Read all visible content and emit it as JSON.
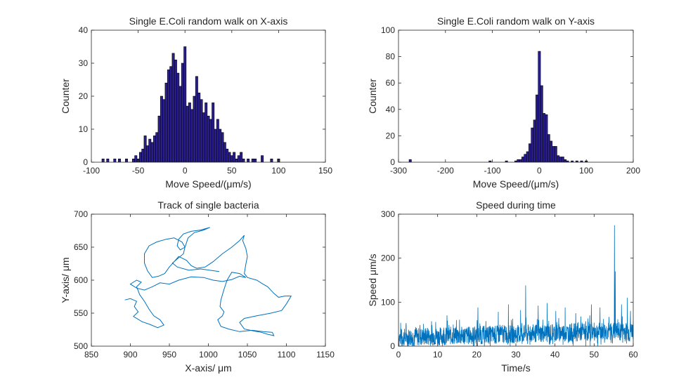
{
  "chart_data": [
    {
      "type": "bar",
      "title": "Single E.Coli random walk on X-axis",
      "xlabel": "Move Speed/(μm/s)",
      "ylabel": "Counter",
      "xlim": [
        -100,
        150
      ],
      "ylim": [
        0,
        40
      ],
      "xticks": [
        -100,
        -50,
        0,
        50,
        100,
        150
      ],
      "yticks": [
        0,
        10,
        20,
        30,
        40
      ],
      "bin_width": 2.5,
      "bars": [
        {
          "x": -87.5,
          "y": 1
        },
        {
          "x": -82.5,
          "y": 1
        },
        {
          "x": -75,
          "y": 1
        },
        {
          "x": -70,
          "y": 1
        },
        {
          "x": -62.5,
          "y": 1
        },
        {
          "x": -55,
          "y": 1
        },
        {
          "x": -52.5,
          "y": 2
        },
        {
          "x": -50,
          "y": 1
        },
        {
          "x": -47.5,
          "y": 3
        },
        {
          "x": -45,
          "y": 4
        },
        {
          "x": -42.5,
          "y": 8
        },
        {
          "x": -40,
          "y": 5
        },
        {
          "x": -37.5,
          "y": 7
        },
        {
          "x": -35,
          "y": 6
        },
        {
          "x": -32.5,
          "y": 8
        },
        {
          "x": -30,
          "y": 9
        },
        {
          "x": -27.5,
          "y": 14
        },
        {
          "x": -25,
          "y": 20
        },
        {
          "x": -22.5,
          "y": 19
        },
        {
          "x": -20,
          "y": 24
        },
        {
          "x": -17.5,
          "y": 28
        },
        {
          "x": -15,
          "y": 29
        },
        {
          "x": -12.5,
          "y": 33
        },
        {
          "x": -10,
          "y": 31
        },
        {
          "x": -7.5,
          "y": 27
        },
        {
          "x": -5,
          "y": 23
        },
        {
          "x": -2.5,
          "y": 30
        },
        {
          "x": 0,
          "y": 35
        },
        {
          "x": 2.5,
          "y": 17
        },
        {
          "x": 5,
          "y": 18
        },
        {
          "x": 7.5,
          "y": 16
        },
        {
          "x": 10,
          "y": 20
        },
        {
          "x": 12.5,
          "y": 26
        },
        {
          "x": 15,
          "y": 21
        },
        {
          "x": 17.5,
          "y": 19
        },
        {
          "x": 20,
          "y": 15
        },
        {
          "x": 22.5,
          "y": 18
        },
        {
          "x": 25,
          "y": 14
        },
        {
          "x": 27.5,
          "y": 13
        },
        {
          "x": 30,
          "y": 18
        },
        {
          "x": 32.5,
          "y": 10
        },
        {
          "x": 35,
          "y": 13
        },
        {
          "x": 37.5,
          "y": 10
        },
        {
          "x": 40,
          "y": 9
        },
        {
          "x": 42.5,
          "y": 6
        },
        {
          "x": 45,
          "y": 4
        },
        {
          "x": 47.5,
          "y": 3
        },
        {
          "x": 50,
          "y": 2
        },
        {
          "x": 52.5,
          "y": 3
        },
        {
          "x": 55,
          "y": 1
        },
        {
          "x": 57.5,
          "y": 2
        },
        {
          "x": 60,
          "y": 3
        },
        {
          "x": 62.5,
          "y": 1
        },
        {
          "x": 67.5,
          "y": 1
        },
        {
          "x": 72.5,
          "y": 1
        },
        {
          "x": 75,
          "y": 1
        },
        {
          "x": 82.5,
          "y": 2
        },
        {
          "x": 92.5,
          "y": 1
        },
        {
          "x": 100,
          "y": 1
        }
      ]
    },
    {
      "type": "bar",
      "title": "Single E.Coli random walk on Y-axis",
      "xlabel": "Move Speed/(μm/s)",
      "ylabel": "Counter",
      "xlim": [
        -300,
        200
      ],
      "ylim": [
        0,
        100
      ],
      "xticks": [
        -300,
        -200,
        -100,
        0,
        100,
        200
      ],
      "yticks": [
        0,
        20,
        40,
        60,
        80,
        100
      ],
      "bin_width": 5,
      "bars": [
        {
          "x": -275,
          "y": 2
        },
        {
          "x": -105,
          "y": 1
        },
        {
          "x": -70,
          "y": 1
        },
        {
          "x": -50,
          "y": 1
        },
        {
          "x": -45,
          "y": 2
        },
        {
          "x": -40,
          "y": 2
        },
        {
          "x": -35,
          "y": 4
        },
        {
          "x": -30,
          "y": 6
        },
        {
          "x": -25,
          "y": 8
        },
        {
          "x": -20,
          "y": 14
        },
        {
          "x": -15,
          "y": 26
        },
        {
          "x": -10,
          "y": 32
        },
        {
          "x": -5,
          "y": 51
        },
        {
          "x": 0,
          "y": 84
        },
        {
          "x": 5,
          "y": 58
        },
        {
          "x": 10,
          "y": 37
        },
        {
          "x": 15,
          "y": 36
        },
        {
          "x": 20,
          "y": 21
        },
        {
          "x": 25,
          "y": 16
        },
        {
          "x": 30,
          "y": 12
        },
        {
          "x": 35,
          "y": 12
        },
        {
          "x": 40,
          "y": 5
        },
        {
          "x": 45,
          "y": 4
        },
        {
          "x": 50,
          "y": 4
        },
        {
          "x": 55,
          "y": 2
        },
        {
          "x": 60,
          "y": 1
        },
        {
          "x": 70,
          "y": 1
        },
        {
          "x": 80,
          "y": 1
        },
        {
          "x": 90,
          "y": 1
        },
        {
          "x": 100,
          "y": 1
        }
      ]
    },
    {
      "type": "line",
      "title": "Track of single bacteria",
      "xlabel": "X-axis/ μm",
      "ylabel": "Y-axis/ μm",
      "xlim": [
        850,
        1150
      ],
      "ylim": [
        500,
        700
      ],
      "xticks": [
        850,
        900,
        950,
        1000,
        1050,
        1100,
        1150
      ],
      "yticks": [
        500,
        550,
        600,
        650,
        700
      ],
      "path": [
        [
          893,
          570
        ],
        [
          900,
          572
        ],
        [
          908,
          568
        ],
        [
          905,
          560
        ],
        [
          910,
          552
        ],
        [
          904,
          545
        ],
        [
          915,
          537
        ],
        [
          925,
          533
        ],
        [
          935,
          528
        ],
        [
          943,
          532
        ],
        [
          938,
          540
        ],
        [
          930,
          546
        ],
        [
          924,
          556
        ],
        [
          918,
          568
        ],
        [
          912,
          578
        ],
        [
          908,
          590
        ],
        [
          914,
          597
        ],
        [
          908,
          600
        ],
        [
          900,
          594
        ],
        [
          908,
          588
        ],
        [
          918,
          585
        ],
        [
          928,
          590
        ],
        [
          938,
          596
        ],
        [
          950,
          594
        ],
        [
          962,
          600
        ],
        [
          978,
          605
        ],
        [
          994,
          604
        ],
        [
          1006,
          600
        ],
        [
          1018,
          598
        ],
        [
          1030,
          601
        ],
        [
          1040,
          606
        ],
        [
          1048,
          604
        ],
        [
          1040,
          610
        ],
        [
          1030,
          612
        ],
        [
          1024,
          600
        ],
        [
          1020,
          586
        ],
        [
          1016,
          570
        ],
        [
          1015,
          560
        ],
        [
          1020,
          552
        ],
        [
          1018,
          546
        ],
        [
          1012,
          540
        ],
        [
          1016,
          530
        ],
        [
          1026,
          526
        ],
        [
          1040,
          522
        ],
        [
          1056,
          524
        ],
        [
          1070,
          522
        ],
        [
          1082,
          521
        ],
        [
          1084,
          516
        ],
        [
          1076,
          518
        ],
        [
          1068,
          521
        ],
        [
          1058,
          523
        ],
        [
          1046,
          526
        ],
        [
          1040,
          536
        ],
        [
          1046,
          542
        ],
        [
          1062,
          546
        ],
        [
          1080,
          550
        ],
        [
          1094,
          554
        ],
        [
          1100,
          564
        ],
        [
          1106,
          576
        ],
        [
          1098,
          576
        ],
        [
          1090,
          574
        ],
        [
          1084,
          580
        ],
        [
          1076,
          590
        ],
        [
          1070,
          594
        ],
        [
          1062,
          600
        ],
        [
          1050,
          604
        ],
        [
          1046,
          610
        ],
        [
          1048,
          624
        ],
        [
          1050,
          636
        ],
        [
          1048,
          648
        ],
        [
          1044,
          660
        ],
        [
          1046,
          668
        ],
        [
          1040,
          660
        ],
        [
          1030,
          650
        ],
        [
          1018,
          640
        ],
        [
          1006,
          628
        ],
        [
          996,
          620
        ],
        [
          985,
          618
        ],
        [
          978,
          622
        ],
        [
          972,
          630
        ],
        [
          962,
          636
        ],
        [
          956,
          628
        ],
        [
          950,
          620
        ],
        [
          944,
          610
        ],
        [
          936,
          606
        ],
        [
          928,
          604
        ],
        [
          922,
          614
        ],
        [
          918,
          626
        ],
        [
          918,
          640
        ],
        [
          924,
          652
        ],
        [
          934,
          658
        ],
        [
          946,
          662
        ],
        [
          956,
          664
        ],
        [
          966,
          658
        ],
        [
          970,
          650
        ],
        [
          964,
          646
        ],
        [
          960,
          652
        ],
        [
          962,
          662
        ],
        [
          968,
          670
        ],
        [
          978,
          674
        ],
        [
          990,
          676
        ],
        [
          1002,
          680
        ],
        [
          994,
          676
        ],
        [
          982,
          672
        ],
        [
          974,
          664
        ],
        [
          970,
          650
        ],
        [
          968,
          640
        ],
        [
          962,
          634
        ],
        [
          954,
          626
        ],
        [
          960,
          620
        ],
        [
          975,
          615
        ],
        [
          990,
          617
        ],
        [
          1002,
          615
        ],
        [
          1014,
          613
        ]
      ]
    },
    {
      "type": "line",
      "title": "Speed during time",
      "xlabel": "Time/s",
      "ylabel": "Speed μm/s",
      "xlim": [
        0,
        60
      ],
      "ylim": [
        0,
        300
      ],
      "xticks": [
        0,
        10,
        20,
        30,
        40,
        50,
        60
      ],
      "yticks": [
        0,
        100,
        200,
        300
      ],
      "spikes": [
        {
          "t": 0.8,
          "v": 38
        },
        {
          "t": 5.5,
          "v": 48
        },
        {
          "t": 9.5,
          "v": 55
        },
        {
          "t": 12.4,
          "v": 70
        },
        {
          "t": 15.6,
          "v": 60
        },
        {
          "t": 20.3,
          "v": 88
        },
        {
          "t": 25.5,
          "v": 78
        },
        {
          "t": 28.1,
          "v": 95
        },
        {
          "t": 31.2,
          "v": 82
        },
        {
          "t": 32.5,
          "v": 138
        },
        {
          "t": 35.7,
          "v": 92
        },
        {
          "t": 38.0,
          "v": 98
        },
        {
          "t": 40.2,
          "v": 80
        },
        {
          "t": 42.6,
          "v": 88
        },
        {
          "t": 45.3,
          "v": 75
        },
        {
          "t": 48.9,
          "v": 70
        },
        {
          "t": 49.3,
          "v": 95
        },
        {
          "t": 51.5,
          "v": 88
        },
        {
          "t": 52.4,
          "v": 62
        },
        {
          "t": 55.2,
          "v": 275
        },
        {
          "t": 55.4,
          "v": 170
        },
        {
          "t": 57.0,
          "v": 95
        },
        {
          "t": 58.5,
          "v": 110
        },
        {
          "t": 59.3,
          "v": 80
        }
      ]
    }
  ],
  "colors": {
    "bar_fill": "#2a1f8c",
    "bar_edge": "#000000",
    "line": "#0072bd",
    "axes": "#262626"
  }
}
